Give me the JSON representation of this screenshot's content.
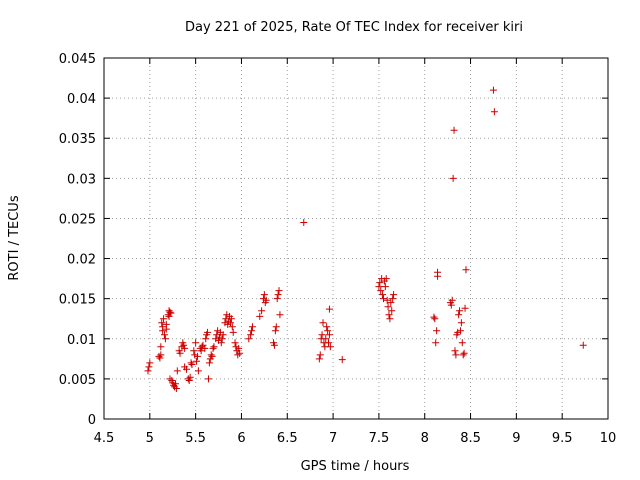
{
  "chart_data": {
    "type": "scatter",
    "title": "Day 221 of 2025, Rate Of TEC Index for receiver kiri",
    "xlabel": "GPS time / hours",
    "ylabel": "ROTI / TECUs",
    "xlim": [
      4.5,
      10
    ],
    "ylim": [
      0,
      0.045
    ],
    "grid": true,
    "marker": "plus",
    "point_color": "#cc0000",
    "x_ticks": [
      4.5,
      5,
      5.5,
      6,
      6.5,
      7,
      7.5,
      8,
      8.5,
      9,
      9.5,
      10
    ],
    "x_tick_labels": [
      "4.5",
      "5",
      "5.5",
      "6",
      "6.5",
      "7",
      "7.5",
      "8",
      "8.5",
      "9",
      "9.5",
      "10"
    ],
    "y_ticks": [
      0,
      0.005,
      0.01,
      0.015,
      0.02,
      0.025,
      0.03,
      0.035,
      0.04,
      0.045
    ],
    "y_tick_labels": [
      "0",
      "0.005",
      "0.01",
      "0.015",
      "0.02",
      "0.025",
      "0.03",
      "0.035",
      "0.04",
      "0.045"
    ],
    "series": [
      {
        "name": "ROTI",
        "points": [
          [
            4.98,
            0.006
          ],
          [
            4.99,
            0.0065
          ],
          [
            5.0,
            0.007
          ],
          [
            5.1,
            0.0078
          ],
          [
            5.11,
            0.0076
          ],
          [
            5.12,
            0.008
          ],
          [
            5.12,
            0.009
          ],
          [
            5.13,
            0.012
          ],
          [
            5.14,
            0.0115
          ],
          [
            5.14,
            0.011
          ],
          [
            5.15,
            0.0125
          ],
          [
            5.16,
            0.0105
          ],
          [
            5.17,
            0.01
          ],
          [
            5.18,
            0.0112
          ],
          [
            5.18,
            0.0118
          ],
          [
            5.2,
            0.013
          ],
          [
            5.21,
            0.0135
          ],
          [
            5.21,
            0.0128
          ],
          [
            5.22,
            0.0133
          ],
          [
            5.23,
            0.0132
          ],
          [
            5.22,
            0.005
          ],
          [
            5.24,
            0.0048
          ],
          [
            5.25,
            0.0045
          ],
          [
            5.26,
            0.0042
          ],
          [
            5.27,
            0.004
          ],
          [
            5.28,
            0.0044
          ],
          [
            5.29,
            0.0038
          ],
          [
            5.3,
            0.006
          ],
          [
            5.32,
            0.0085
          ],
          [
            5.33,
            0.0082
          ],
          [
            5.35,
            0.009
          ],
          [
            5.36,
            0.0095
          ],
          [
            5.37,
            0.0092
          ],
          [
            5.38,
            0.0088
          ],
          [
            5.38,
            0.0065
          ],
          [
            5.4,
            0.0062
          ],
          [
            5.42,
            0.005
          ],
          [
            5.43,
            0.0048
          ],
          [
            5.44,
            0.0052
          ],
          [
            5.45,
            0.007
          ],
          [
            5.46,
            0.0068
          ],
          [
            5.48,
            0.0085
          ],
          [
            5.49,
            0.008
          ],
          [
            5.5,
            0.0095
          ],
          [
            5.51,
            0.0072
          ],
          [
            5.52,
            0.0078
          ],
          [
            5.53,
            0.006
          ],
          [
            5.55,
            0.0088
          ],
          [
            5.56,
            0.0085
          ],
          [
            5.57,
            0.009
          ],
          [
            5.58,
            0.0092
          ],
          [
            5.6,
            0.0088
          ],
          [
            5.61,
            0.01
          ],
          [
            5.62,
            0.0105
          ],
          [
            5.63,
            0.0108
          ],
          [
            5.64,
            0.005
          ],
          [
            5.65,
            0.007
          ],
          [
            5.66,
            0.0075
          ],
          [
            5.67,
            0.008
          ],
          [
            5.68,
            0.0078
          ],
          [
            5.69,
            0.0088
          ],
          [
            5.7,
            0.009
          ],
          [
            5.72,
            0.01
          ],
          [
            5.73,
            0.0105
          ],
          [
            5.74,
            0.011
          ],
          [
            5.75,
            0.0098
          ],
          [
            5.76,
            0.0102
          ],
          [
            5.77,
            0.0108
          ],
          [
            5.78,
            0.0095
          ],
          [
            5.79,
            0.01
          ],
          [
            5.8,
            0.0105
          ],
          [
            5.82,
            0.012
          ],
          [
            5.83,
            0.0125
          ],
          [
            5.84,
            0.013
          ],
          [
            5.85,
            0.0118
          ],
          [
            5.86,
            0.0122
          ],
          [
            5.87,
            0.0128
          ],
          [
            5.88,
            0.012
          ],
          [
            5.89,
            0.0125
          ],
          [
            5.9,
            0.0115
          ],
          [
            5.91,
            0.0108
          ],
          [
            5.93,
            0.0095
          ],
          [
            5.94,
            0.009
          ],
          [
            5.95,
            0.0085
          ],
          [
            5.96,
            0.008
          ],
          [
            5.97,
            0.0088
          ],
          [
            5.98,
            0.0082
          ],
          [
            6.08,
            0.01
          ],
          [
            6.1,
            0.0105
          ],
          [
            6.11,
            0.011
          ],
          [
            6.12,
            0.0115
          ],
          [
            6.2,
            0.0128
          ],
          [
            6.22,
            0.0135
          ],
          [
            6.24,
            0.015
          ],
          [
            6.25,
            0.0155
          ],
          [
            6.26,
            0.0145
          ],
          [
            6.27,
            0.0148
          ],
          [
            6.35,
            0.0095
          ],
          [
            6.36,
            0.0092
          ],
          [
            6.37,
            0.011
          ],
          [
            6.38,
            0.0115
          ],
          [
            6.39,
            0.015
          ],
          [
            6.4,
            0.0155
          ],
          [
            6.41,
            0.016
          ],
          [
            6.42,
            0.013
          ],
          [
            6.68,
            0.0245
          ],
          [
            6.85,
            0.0075
          ],
          [
            6.86,
            0.008
          ],
          [
            6.87,
            0.01
          ],
          [
            6.88,
            0.0105
          ],
          [
            6.89,
            0.012
          ],
          [
            6.9,
            0.0095
          ],
          [
            6.91,
            0.009
          ],
          [
            6.92,
            0.01
          ],
          [
            6.93,
            0.0115
          ],
          [
            6.94,
            0.011
          ],
          [
            6.95,
            0.0095
          ],
          [
            6.96,
            0.0105
          ],
          [
            6.96,
            0.0137
          ],
          [
            6.97,
            0.009
          ],
          [
            7.1,
            0.0074
          ],
          [
            7.5,
            0.0165
          ],
          [
            7.51,
            0.017
          ],
          [
            7.52,
            0.016
          ],
          [
            7.53,
            0.0175
          ],
          [
            7.54,
            0.0155
          ],
          [
            7.55,
            0.015
          ],
          [
            7.56,
            0.0172
          ],
          [
            7.57,
            0.0165
          ],
          [
            7.58,
            0.0175
          ],
          [
            7.59,
            0.0148
          ],
          [
            7.6,
            0.014
          ],
          [
            7.61,
            0.013
          ],
          [
            7.62,
            0.0125
          ],
          [
            7.63,
            0.0145
          ],
          [
            7.64,
            0.0135
          ],
          [
            7.65,
            0.015
          ],
          [
            7.66,
            0.0155
          ],
          [
            8.1,
            0.0127
          ],
          [
            8.11,
            0.0125
          ],
          [
            8.12,
            0.0095
          ],
          [
            8.13,
            0.011
          ],
          [
            8.14,
            0.0178
          ],
          [
            8.14,
            0.0183
          ],
          [
            8.28,
            0.0145
          ],
          [
            8.29,
            0.0142
          ],
          [
            8.3,
            0.0148
          ],
          [
            8.31,
            0.03
          ],
          [
            8.32,
            0.036
          ],
          [
            8.33,
            0.0085
          ],
          [
            8.34,
            0.008
          ],
          [
            8.35,
            0.0105
          ],
          [
            8.36,
            0.0108
          ],
          [
            8.37,
            0.013
          ],
          [
            8.38,
            0.0135
          ],
          [
            8.39,
            0.011
          ],
          [
            8.4,
            0.012
          ],
          [
            8.41,
            0.0095
          ],
          [
            8.42,
            0.008
          ],
          [
            8.43,
            0.0082
          ],
          [
            8.44,
            0.0138
          ],
          [
            8.45,
            0.0186
          ],
          [
            8.75,
            0.041
          ],
          [
            8.76,
            0.0383
          ],
          [
            9.73,
            0.0092
          ]
        ]
      }
    ]
  }
}
